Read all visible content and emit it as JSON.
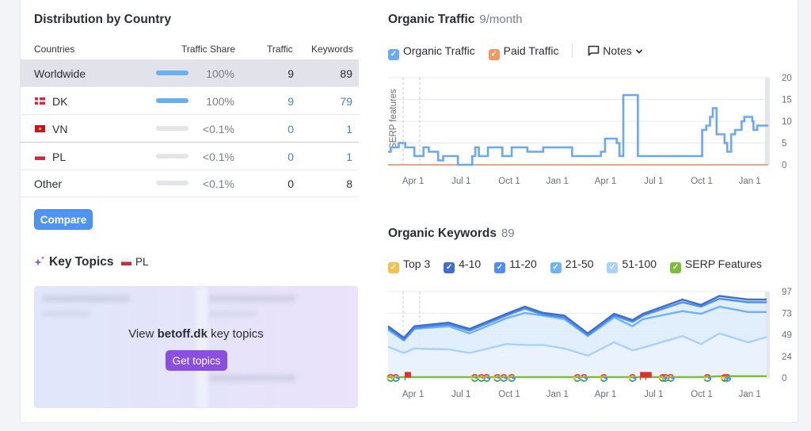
{
  "distribution": {
    "title": "Distribution by Country",
    "columns": [
      "Countries",
      "Traffic Share",
      "Traffic",
      "Keywords"
    ],
    "rows": [
      {
        "name": "Worldwide",
        "share": "100%",
        "share_fraction": 1.0,
        "traffic": "9",
        "keywords": "89",
        "flag": null
      },
      {
        "name": "DK",
        "share": "100%",
        "share_fraction": 1.0,
        "traffic": "9",
        "keywords": "79",
        "flag": "dk"
      },
      {
        "name": "VN",
        "share": "<0.1%",
        "share_fraction": 0.0,
        "traffic": "0",
        "keywords": "1",
        "flag": "vn"
      },
      {
        "name": "PL",
        "share": "<0.1%",
        "share_fraction": 0.0,
        "traffic": "0",
        "keywords": "1",
        "flag": "pl"
      },
      {
        "name": "Other",
        "share": "<0.1%",
        "share_fraction": 0.0,
        "traffic": "0",
        "keywords": "8",
        "flag": null
      }
    ],
    "compare_label": "Compare"
  },
  "key_topics": {
    "title": "Key Topics",
    "country": "PL",
    "view_prefix": "View",
    "domain": "betoff.dk",
    "view_suffix": "key topics",
    "button": "Get topics"
  },
  "organic_traffic": {
    "title": "Organic Traffic",
    "subtitle": "9/month",
    "legend": [
      "Organic Traffic",
      "Paid Traffic"
    ],
    "notes_label": "Notes",
    "serp_label": "SERP features"
  },
  "organic_keywords": {
    "title": "Organic Keywords",
    "subtitle": "89",
    "legend": [
      "Top 3",
      "4-10",
      "11-20",
      "21-50",
      "51-100",
      "SERP Features"
    ]
  },
  "colors": {
    "organic": "#68a8f4",
    "paid": "#f0a57a",
    "top3": "#f2c14e",
    "k4_10": "#3b6fd1",
    "k11_20": "#4d8ef0",
    "k21_50": "#6eb3f7",
    "k51_100": "#a8d1fb",
    "serp": "#7cbd3c",
    "accent": "#8a4fe0"
  },
  "chart_data": [
    {
      "type": "line",
      "title": "Organic Traffic",
      "x_unit": "months since first Apr 1",
      "xtick_labels": [
        "Apr 1",
        "Jul 1",
        "Oct 1",
        "Jan 1",
        "Apr 1",
        "Jul 1",
        "Oct 1",
        "Jan 1"
      ],
      "xtick_values": [
        0,
        3,
        6,
        9,
        12,
        15,
        18,
        21
      ],
      "xlim": [
        -1.56,
        22.15
      ],
      "ylim": [
        0,
        20
      ],
      "ytick_labels": [
        "0",
        "5",
        "10",
        "15",
        "20"
      ],
      "step": true,
      "series": [
        {
          "name": "Organic Traffic",
          "x": [
            -1.56,
            -1.39,
            -0.9,
            -0.49,
            0.08,
            0.65,
            0.98,
            1.56,
            1.88,
            2.79,
            3.69,
            3.88,
            4.1,
            4.67,
            5.57,
            6.15,
            7.13,
            8.11,
            9.92,
            11.72,
            11.97,
            12.7,
            12.87,
            13.11,
            14.02,
            18.03,
            18.28,
            18.52,
            18.69,
            18.93,
            19.43,
            19.59,
            19.84,
            20.08,
            20.49,
            20.66,
            21.15,
            21.23,
            21.47,
            22.13
          ],
          "values": [
            3,
            4,
            5,
            4,
            2,
            4,
            3,
            1,
            2,
            0,
            2,
            4,
            2,
            4,
            2,
            4,
            3,
            4,
            2,
            3,
            6,
            5,
            2,
            16,
            2,
            8,
            9,
            11,
            13,
            7,
            5,
            3,
            7,
            8,
            10,
            11,
            10,
            8,
            9,
            9
          ]
        },
        {
          "name": "Paid Traffic",
          "x": [
            -1.56,
            22.15
          ],
          "values": [
            0,
            0
          ]
        }
      ]
    },
    {
      "type": "area",
      "title": "Organic Keywords",
      "xtick_labels": [
        "Apr 1",
        "Jul 1",
        "Oct 1",
        "Jan 1",
        "Apr 1",
        "Jul 1",
        "Oct 1",
        "Jan 1"
      ],
      "xtick_values": [
        0,
        3,
        6,
        9,
        12,
        15,
        18,
        21
      ],
      "xlim": [
        -1.56,
        22.15
      ],
      "ylim": [
        0,
        97
      ],
      "ytick_labels": [
        "0",
        "24",
        "49",
        "73",
        "97"
      ],
      "x": [
        -1.56,
        -0.57,
        0.08,
        2.21,
        3.52,
        5.82,
        6.97,
        8.11,
        9.43,
        10.9,
        12.54,
        13.69,
        14.34,
        16.8,
        17.95,
        19.1,
        20.9,
        22.05
      ],
      "series": [
        {
          "name": "Top 3",
          "values": [
            58.5,
            45.5,
            58.5,
            62.5,
            55.5,
            72.5,
            80.5,
            73.5,
            70.5,
            50.5,
            72.5,
            65.5,
            72.5,
            88.5,
            82.5,
            92.5,
            88.5,
            88.5
          ]
        },
        {
          "name": "4-10",
          "values": [
            58,
            45,
            58,
            62,
            55,
            72,
            80,
            73,
            70,
            50,
            72,
            65,
            72,
            88,
            82,
            92,
            88,
            88
          ]
        },
        {
          "name": "11-20",
          "values": [
            56,
            43,
            56,
            60,
            53,
            70,
            78,
            71,
            68,
            48,
            70,
            63,
            70,
            85,
            80,
            89,
            85,
            85
          ]
        },
        {
          "name": "21-50",
          "values": [
            54,
            42,
            55,
            58,
            50,
            67,
            73,
            70,
            66,
            47,
            68,
            58,
            66,
            75,
            72,
            80,
            74,
            74
          ]
        },
        {
          "name": "51-100",
          "values": [
            35,
            28,
            33,
            32,
            28,
            38,
            37,
            37,
            33,
            25,
            40,
            31,
            34,
            47,
            38,
            50,
            40,
            46
          ]
        },
        {
          "name": "SERP Features",
          "values": [
            1,
            1,
            1,
            1,
            1,
            1,
            1,
            1,
            1,
            1,
            1,
            1,
            1,
            1,
            1,
            2,
            2,
            2
          ]
        }
      ],
      "serp_markers": [
        {
          "x": -1.4,
          "type": "google"
        },
        {
          "x": -1.07,
          "type": "google"
        },
        {
          "x": -0.5,
          "type": "flag"
        },
        {
          "x": 3.85,
          "type": "google"
        },
        {
          "x": 4.26,
          "type": "google"
        },
        {
          "x": 4.59,
          "type": "google"
        },
        {
          "x": 5.25,
          "type": "google"
        },
        {
          "x": 5.66,
          "type": "google"
        },
        {
          "x": 6.15,
          "type": "google"
        },
        {
          "x": 10.25,
          "type": "google"
        },
        {
          "x": 10.66,
          "type": "google"
        },
        {
          "x": 11.9,
          "type": "google"
        },
        {
          "x": 13.69,
          "type": "google"
        },
        {
          "x": 14.18,
          "type": "flag"
        },
        {
          "x": 14.51,
          "type": "flag"
        },
        {
          "x": 15.57,
          "type": "google"
        },
        {
          "x": 15.74,
          "type": "google"
        },
        {
          "x": 16.07,
          "type": "google"
        },
        {
          "x": 18.36,
          "type": "google"
        },
        {
          "x": 19.43,
          "type": "google"
        },
        {
          "x": 19.59,
          "type": "google"
        }
      ]
    }
  ]
}
